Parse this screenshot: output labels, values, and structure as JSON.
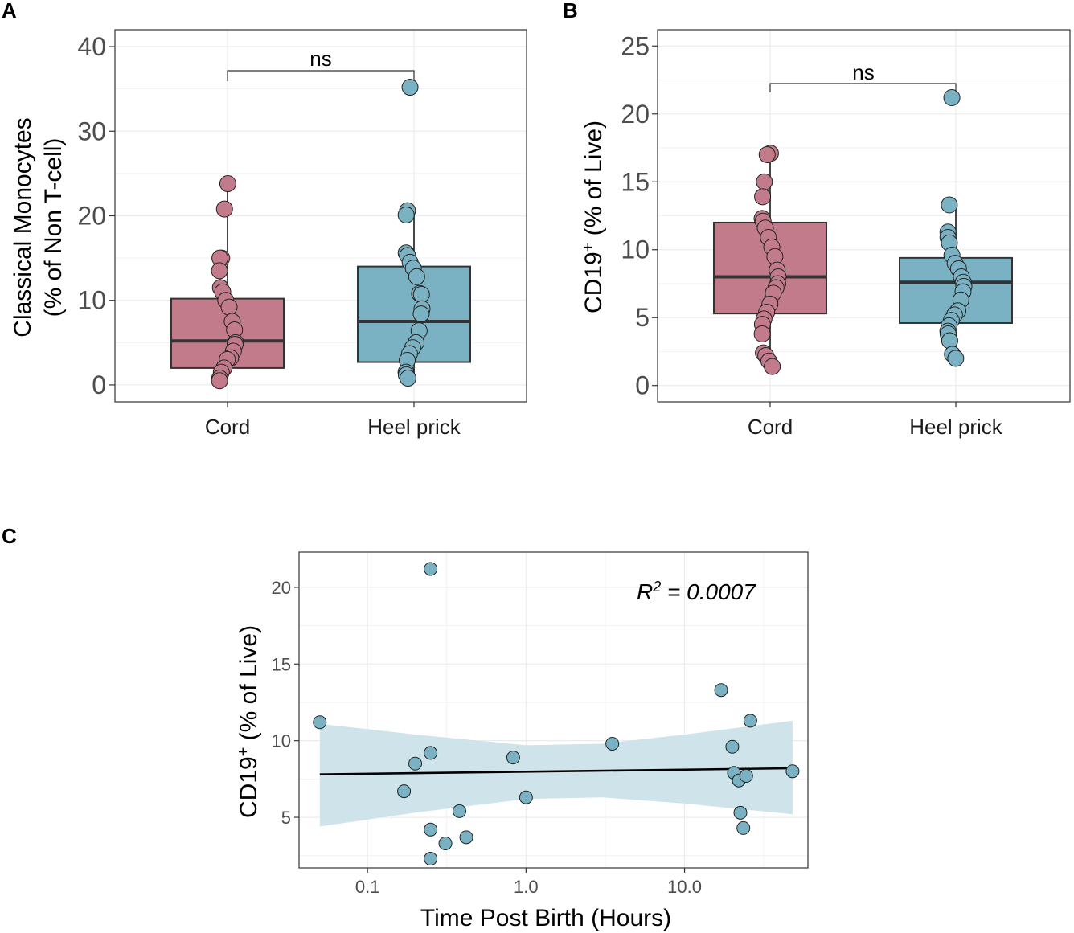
{
  "colors": {
    "cord": "#c27b8a",
    "heel": "#7ab2c3",
    "ribbon": "#cfe3ea",
    "point_c": "#7ab2c3"
  },
  "chart_data": [
    {
      "panel": "A",
      "type": "box",
      "categories": [
        "Cord",
        "Heel prick"
      ],
      "ylabel_line1": "Classical Monocytes",
      "ylabel_line2": "(% of Non T-cell)",
      "ylim": [
        -2,
        42
      ],
      "yticks": [
        0,
        10,
        20,
        30,
        40
      ],
      "yticklabels": [
        "0",
        "10",
        "20",
        "30",
        "40"
      ],
      "significance": "ns",
      "boxes": [
        {
          "category": "Cord",
          "q1": 2.0,
          "median": 5.2,
          "q3": 10.2,
          "whisker_low": 0.5,
          "whisker_high": 23.8
        },
        {
          "category": "Heel prick",
          "q1": 2.7,
          "median": 7.5,
          "q3": 14.0,
          "whisker_low": 0.8,
          "whisker_high": 20.6
        }
      ],
      "series": [
        {
          "name": "Cord",
          "values": [
            23.8,
            20.8,
            15.0,
            15.0,
            13.5,
            11.5,
            11.0,
            10.0,
            9.2,
            7.5,
            6.5,
            5.0,
            4.8,
            4.0,
            3.2,
            3.0,
            2.0,
            1.5,
            0.8,
            0.5
          ]
        },
        {
          "name": "Heel prick",
          "values": [
            35.2,
            20.6,
            20.1,
            15.6,
            15.3,
            14.5,
            13.8,
            12.8,
            10.8,
            10.7,
            9.0,
            8.4,
            6.4,
            5.0,
            4.4,
            3.7,
            2.9,
            1.5,
            1.2,
            0.8
          ]
        }
      ]
    },
    {
      "panel": "B",
      "type": "box",
      "categories": [
        "Cord",
        "Heel prick"
      ],
      "ylabel_main": "CD19",
      "ylabel_sup": "+",
      "ylabel_rest": " (% of Live)",
      "ylim": [
        -1.2,
        26.2
      ],
      "yticks": [
        0,
        5,
        10,
        15,
        20,
        25
      ],
      "yticklabels": [
        "0",
        "5",
        "10",
        "15",
        "20",
        "25"
      ],
      "significance": "ns",
      "boxes": [
        {
          "category": "Cord",
          "q1": 5.3,
          "median": 8.0,
          "q3": 12.0,
          "whisker_low": 1.4,
          "whisker_high": 17.0
        },
        {
          "category": "Heel prick",
          "q1": 4.6,
          "median": 7.6,
          "q3": 9.4,
          "whisker_low": 2.0,
          "whisker_high": 13.3
        }
      ],
      "series": [
        {
          "name": "Cord",
          "values": [
            17.1,
            17.0,
            15.0,
            13.9,
            12.3,
            12.1,
            11.6,
            10.9,
            10.2,
            9.5,
            8.5,
            8.0,
            7.5,
            7.2,
            6.8,
            6.0,
            5.4,
            4.9,
            4.5,
            3.8,
            2.4,
            2.2,
            1.8,
            1.4
          ]
        },
        {
          "name": "Heel prick",
          "values": [
            21.2,
            13.3,
            11.3,
            10.9,
            10.5,
            9.6,
            9.0,
            8.6,
            8.0,
            7.6,
            7.3,
            6.9,
            6.3,
            5.5,
            5.2,
            4.8,
            4.4,
            4.0,
            3.8,
            3.3,
            2.3,
            2.0
          ]
        }
      ]
    },
    {
      "panel": "C",
      "type": "scatter",
      "xscale": "log10",
      "xlim": [
        0.037,
        60
      ],
      "ylim": [
        1.7,
        22.3
      ],
      "xticks": [
        0.1,
        1.0,
        10.0
      ],
      "xticklabels": [
        "0.1",
        "1.0",
        "10.0"
      ],
      "yticks": [
        5,
        10,
        15,
        20
      ],
      "yticklabels": [
        "5",
        "10",
        "15",
        "20"
      ],
      "xlabel": "Time Post Birth (Hours)",
      "ylabel_main": "CD19",
      "ylabel_sup": "+",
      "ylabel_rest": " (% of Live)",
      "annotation_main": "R",
      "annotation_sup": "2",
      "annotation_rest": " = 0.0007",
      "points": [
        {
          "x": 0.05,
          "y": 11.2
        },
        {
          "x": 0.17,
          "y": 6.7
        },
        {
          "x": 0.2,
          "y": 8.5
        },
        {
          "x": 0.25,
          "y": 21.2
        },
        {
          "x": 0.25,
          "y": 9.2
        },
        {
          "x": 0.25,
          "y": 4.2
        },
        {
          "x": 0.25,
          "y": 2.3
        },
        {
          "x": 0.31,
          "y": 3.3
        },
        {
          "x": 0.38,
          "y": 5.4
        },
        {
          "x": 0.42,
          "y": 3.7
        },
        {
          "x": 0.83,
          "y": 8.9
        },
        {
          "x": 1.0,
          "y": 6.3
        },
        {
          "x": 3.5,
          "y": 9.8
        },
        {
          "x": 17.0,
          "y": 13.3
        },
        {
          "x": 20.0,
          "y": 9.6
        },
        {
          "x": 20.5,
          "y": 7.9
        },
        {
          "x": 22.0,
          "y": 7.4
        },
        {
          "x": 22.5,
          "y": 5.3
        },
        {
          "x": 23.5,
          "y": 4.3
        },
        {
          "x": 24.5,
          "y": 7.7
        },
        {
          "x": 26.0,
          "y": 11.3
        },
        {
          "x": 48.0,
          "y": 8.0
        }
      ],
      "fit": {
        "x0": 0.05,
        "y0": 7.8,
        "x1": 48.0,
        "y1": 8.2
      },
      "ribbon": [
        {
          "x": 0.05,
          "lo": 4.4,
          "hi": 11.1
        },
        {
          "x": 0.2,
          "lo": 5.3,
          "hi": 10.4
        },
        {
          "x": 1.0,
          "lo": 6.2,
          "hi": 9.7
        },
        {
          "x": 3.0,
          "lo": 6.3,
          "hi": 9.8
        },
        {
          "x": 10.0,
          "lo": 5.9,
          "hi": 10.4
        },
        {
          "x": 48.0,
          "lo": 5.2,
          "hi": 11.3
        }
      ]
    }
  ]
}
